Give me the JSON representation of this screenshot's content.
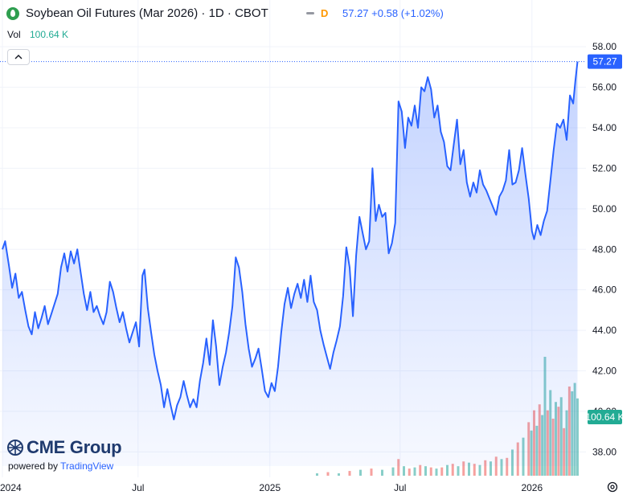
{
  "header": {
    "title": "Soybean Oil Futures (Mar 2026) · 1D · CBOT",
    "interval_badge": "D",
    "last_price": "57.27",
    "change": "+0.58",
    "change_pct": "(+1.02%)",
    "vol_label": "Vol",
    "vol_value": "100.64 K"
  },
  "brand": {
    "logo_icon": "cme-globe-icon",
    "name": "CME Group",
    "powered_prefix": "powered by",
    "powered_brand": "TradingView"
  },
  "colors": {
    "line": "#2962ff",
    "area_top": "#2962ff",
    "vol_up": "#26a69a",
    "vol_down": "#ef5350",
    "price_label_bg": "#2962ff",
    "vol_label_bg": "#22ab94",
    "accent_orange": "#ff9800"
  },
  "chart_data": {
    "type": "area",
    "ylim": [
      37.3,
      58.8
    ],
    "y_ticks": [
      "38.00",
      "40.00",
      "42.00",
      "44.00",
      "46.00",
      "48.00",
      "50.00",
      "52.00",
      "54.00",
      "56.00",
      "58.00"
    ],
    "x_ticks": [
      {
        "label": "2024",
        "t": 0
      },
      {
        "label": "Jul",
        "t": 0.25
      },
      {
        "label": "2025",
        "t": 0.493
      },
      {
        "label": "Jul",
        "t": 0.733
      },
      {
        "label": "2026",
        "t": 0.976
      }
    ],
    "x_range_months": [
      "2024-01",
      "2026-02"
    ],
    "last_price_label": "57.27",
    "last_volume_label": "100.64 K",
    "price_series": [
      [
        0.0,
        48.0
      ],
      [
        0.005,
        48.4
      ],
      [
        0.012,
        47.2
      ],
      [
        0.018,
        46.1
      ],
      [
        0.024,
        46.8
      ],
      [
        0.03,
        45.6
      ],
      [
        0.036,
        45.9
      ],
      [
        0.042,
        45.0
      ],
      [
        0.048,
        44.2
      ],
      [
        0.054,
        43.8
      ],
      [
        0.06,
        44.9
      ],
      [
        0.066,
        44.1
      ],
      [
        0.072,
        44.6
      ],
      [
        0.078,
        45.2
      ],
      [
        0.084,
        44.3
      ],
      [
        0.09,
        44.8
      ],
      [
        0.096,
        45.3
      ],
      [
        0.102,
        45.8
      ],
      [
        0.108,
        47.1
      ],
      [
        0.114,
        47.8
      ],
      [
        0.12,
        46.9
      ],
      [
        0.126,
        47.9
      ],
      [
        0.132,
        47.3
      ],
      [
        0.138,
        48.0
      ],
      [
        0.144,
        46.9
      ],
      [
        0.15,
        45.8
      ],
      [
        0.156,
        45.0
      ],
      [
        0.162,
        45.9
      ],
      [
        0.168,
        44.9
      ],
      [
        0.174,
        45.2
      ],
      [
        0.18,
        44.7
      ],
      [
        0.186,
        44.3
      ],
      [
        0.192,
        44.9
      ],
      [
        0.198,
        46.4
      ],
      [
        0.204,
        45.9
      ],
      [
        0.21,
        45.1
      ],
      [
        0.216,
        44.4
      ],
      [
        0.222,
        44.9
      ],
      [
        0.228,
        44.1
      ],
      [
        0.234,
        43.4
      ],
      [
        0.24,
        43.9
      ],
      [
        0.246,
        44.4
      ],
      [
        0.252,
        43.2
      ],
      [
        0.258,
        46.7
      ],
      [
        0.262,
        47.0
      ],
      [
        0.268,
        45.1
      ],
      [
        0.274,
        43.9
      ],
      [
        0.28,
        42.8
      ],
      [
        0.286,
        42.0
      ],
      [
        0.292,
        41.3
      ],
      [
        0.298,
        40.2
      ],
      [
        0.304,
        41.1
      ],
      [
        0.31,
        40.3
      ],
      [
        0.316,
        39.6
      ],
      [
        0.322,
        40.3
      ],
      [
        0.328,
        40.7
      ],
      [
        0.334,
        41.5
      ],
      [
        0.34,
        40.8
      ],
      [
        0.346,
        40.2
      ],
      [
        0.352,
        40.6
      ],
      [
        0.358,
        40.2
      ],
      [
        0.364,
        41.5
      ],
      [
        0.37,
        42.4
      ],
      [
        0.376,
        43.6
      ],
      [
        0.382,
        42.3
      ],
      [
        0.388,
        44.5
      ],
      [
        0.394,
        43.2
      ],
      [
        0.4,
        41.3
      ],
      [
        0.406,
        42.2
      ],
      [
        0.412,
        42.9
      ],
      [
        0.418,
        43.9
      ],
      [
        0.424,
        45.2
      ],
      [
        0.43,
        47.6
      ],
      [
        0.436,
        47.1
      ],
      [
        0.442,
        45.9
      ],
      [
        0.448,
        44.3
      ],
      [
        0.454,
        43.1
      ],
      [
        0.46,
        42.2
      ],
      [
        0.466,
        42.6
      ],
      [
        0.472,
        43.1
      ],
      [
        0.478,
        42.1
      ],
      [
        0.484,
        41.0
      ],
      [
        0.49,
        40.7
      ],
      [
        0.496,
        41.4
      ],
      [
        0.502,
        41.0
      ],
      [
        0.508,
        42.2
      ],
      [
        0.514,
        43.9
      ],
      [
        0.52,
        45.3
      ],
      [
        0.526,
        46.1
      ],
      [
        0.532,
        45.1
      ],
      [
        0.538,
        45.8
      ],
      [
        0.544,
        46.3
      ],
      [
        0.55,
        45.6
      ],
      [
        0.556,
        46.5
      ],
      [
        0.562,
        45.4
      ],
      [
        0.568,
        46.7
      ],
      [
        0.574,
        45.4
      ],
      [
        0.58,
        45.0
      ],
      [
        0.586,
        44.0
      ],
      [
        0.592,
        43.3
      ],
      [
        0.598,
        42.7
      ],
      [
        0.604,
        42.1
      ],
      [
        0.61,
        42.9
      ],
      [
        0.616,
        43.5
      ],
      [
        0.622,
        44.2
      ],
      [
        0.628,
        45.7
      ],
      [
        0.634,
        48.1
      ],
      [
        0.64,
        47.1
      ],
      [
        0.646,
        44.7
      ],
      [
        0.652,
        47.7
      ],
      [
        0.658,
        49.6
      ],
      [
        0.664,
        48.8
      ],
      [
        0.67,
        48.0
      ],
      [
        0.676,
        48.4
      ],
      [
        0.682,
        52.0
      ],
      [
        0.688,
        49.4
      ],
      [
        0.694,
        50.2
      ],
      [
        0.7,
        49.6
      ],
      [
        0.706,
        49.8
      ],
      [
        0.712,
        47.8
      ],
      [
        0.718,
        48.3
      ],
      [
        0.724,
        49.3
      ],
      [
        0.73,
        55.3
      ],
      [
        0.736,
        54.8
      ],
      [
        0.742,
        53.0
      ],
      [
        0.748,
        54.5
      ],
      [
        0.754,
        54.1
      ],
      [
        0.76,
        55.1
      ],
      [
        0.766,
        54.0
      ],
      [
        0.772,
        56.0
      ],
      [
        0.778,
        55.8
      ],
      [
        0.784,
        56.5
      ],
      [
        0.79,
        55.9
      ],
      [
        0.796,
        54.5
      ],
      [
        0.802,
        55.1
      ],
      [
        0.808,
        53.8
      ],
      [
        0.814,
        53.3
      ],
      [
        0.82,
        52.1
      ],
      [
        0.826,
        51.9
      ],
      [
        0.832,
        53.2
      ],
      [
        0.838,
        54.4
      ],
      [
        0.844,
        52.2
      ],
      [
        0.85,
        52.9
      ],
      [
        0.856,
        51.3
      ],
      [
        0.862,
        50.6
      ],
      [
        0.868,
        51.3
      ],
      [
        0.874,
        50.8
      ],
      [
        0.88,
        51.9
      ],
      [
        0.886,
        51.2
      ],
      [
        0.892,
        50.9
      ],
      [
        0.898,
        50.5
      ],
      [
        0.904,
        50.1
      ],
      [
        0.91,
        49.7
      ],
      [
        0.916,
        50.6
      ],
      [
        0.922,
        50.9
      ],
      [
        0.928,
        51.4
      ],
      [
        0.934,
        52.9
      ],
      [
        0.94,
        51.2
      ],
      [
        0.946,
        51.3
      ],
      [
        0.952,
        51.9
      ],
      [
        0.958,
        53.0
      ],
      [
        0.964,
        51.7
      ],
      [
        0.97,
        50.5
      ],
      [
        0.976,
        48.9
      ],
      [
        0.98,
        48.5
      ],
      [
        0.986,
        49.2
      ],
      [
        0.992,
        48.7
      ],
      [
        0.998,
        49.4
      ],
      [
        1.004,
        49.9
      ],
      [
        1.01,
        51.4
      ],
      [
        1.016,
        52.9
      ],
      [
        1.022,
        54.2
      ],
      [
        1.028,
        54.0
      ],
      [
        1.034,
        54.4
      ],
      [
        1.04,
        53.4
      ],
      [
        1.046,
        55.6
      ],
      [
        1.052,
        55.2
      ],
      [
        1.056,
        56.3
      ],
      [
        1.06,
        57.27
      ]
    ],
    "volume_series": [
      [
        0.58,
        0.02,
        1
      ],
      [
        0.6,
        0.03,
        0
      ],
      [
        0.62,
        0.02,
        1
      ],
      [
        0.64,
        0.04,
        0
      ],
      [
        0.66,
        0.05,
        1
      ],
      [
        0.68,
        0.06,
        0
      ],
      [
        0.7,
        0.05,
        1
      ],
      [
        0.72,
        0.07,
        1
      ],
      [
        0.73,
        0.14,
        0
      ],
      [
        0.74,
        0.08,
        1
      ],
      [
        0.75,
        0.06,
        0
      ],
      [
        0.76,
        0.07,
        1
      ],
      [
        0.77,
        0.09,
        0
      ],
      [
        0.78,
        0.08,
        1
      ],
      [
        0.79,
        0.07,
        0
      ],
      [
        0.8,
        0.06,
        1
      ],
      [
        0.81,
        0.07,
        0
      ],
      [
        0.82,
        0.09,
        1
      ],
      [
        0.83,
        0.1,
        0
      ],
      [
        0.84,
        0.08,
        1
      ],
      [
        0.85,
        0.12,
        0
      ],
      [
        0.86,
        0.11,
        1
      ],
      [
        0.87,
        0.1,
        0
      ],
      [
        0.88,
        0.09,
        1
      ],
      [
        0.89,
        0.13,
        0
      ],
      [
        0.9,
        0.12,
        1
      ],
      [
        0.91,
        0.16,
        0
      ],
      [
        0.92,
        0.14,
        1
      ],
      [
        0.93,
        0.15,
        0
      ],
      [
        0.94,
        0.22,
        1
      ],
      [
        0.95,
        0.28,
        0
      ],
      [
        0.96,
        0.32,
        1
      ],
      [
        0.97,
        0.45,
        0
      ],
      [
        0.975,
        0.38,
        1
      ],
      [
        0.98,
        0.55,
        0
      ],
      [
        0.985,
        0.42,
        1
      ],
      [
        0.99,
        0.6,
        0
      ],
      [
        0.995,
        0.51,
        1
      ],
      [
        1.0,
        1.0,
        1
      ],
      [
        1.005,
        0.55,
        0
      ],
      [
        1.01,
        0.72,
        1
      ],
      [
        1.015,
        0.48,
        0
      ],
      [
        1.02,
        0.62,
        1
      ],
      [
        1.025,
        0.58,
        0
      ],
      [
        1.03,
        0.66,
        1
      ],
      [
        1.035,
        0.4,
        0
      ],
      [
        1.04,
        0.55,
        1
      ],
      [
        1.045,
        0.75,
        0
      ],
      [
        1.05,
        0.71,
        1
      ],
      [
        1.055,
        0.78,
        1
      ],
      [
        1.06,
        0.65,
        1
      ]
    ]
  }
}
